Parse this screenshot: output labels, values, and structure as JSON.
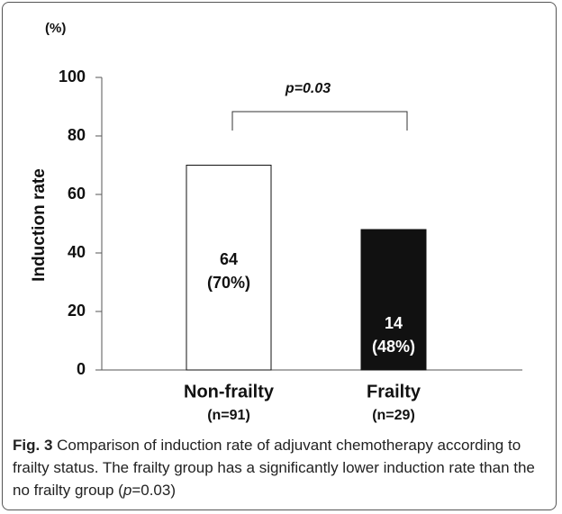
{
  "chart_data": {
    "type": "bar",
    "unit_label": "(%)",
    "y_label": "Induction rate",
    "categories": [
      "Non-frailty",
      "Frailty"
    ],
    "subcategories": [
      "(n=91)",
      "(n=29)"
    ],
    "values": [
      70,
      48
    ],
    "value_labels": [
      "(70%)",
      "(48%)"
    ],
    "counts": [
      64,
      14
    ],
    "colors": [
      "#ffffff",
      "#111111"
    ],
    "label_colors": [
      "#111111",
      "#ffffff"
    ],
    "ylim": [
      0,
      100
    ],
    "yticks": [
      0,
      20,
      40,
      60,
      80,
      100
    ],
    "annotation": "p=0.03"
  },
  "caption": {
    "label": "Fig. 3",
    "text": "Comparison of induction rate of adjuvant chemotherapy according to frailty status. The frailty group has a significantly lower induction rate than the no frailty group (",
    "italic": "p",
    "end": "=0.03)"
  }
}
